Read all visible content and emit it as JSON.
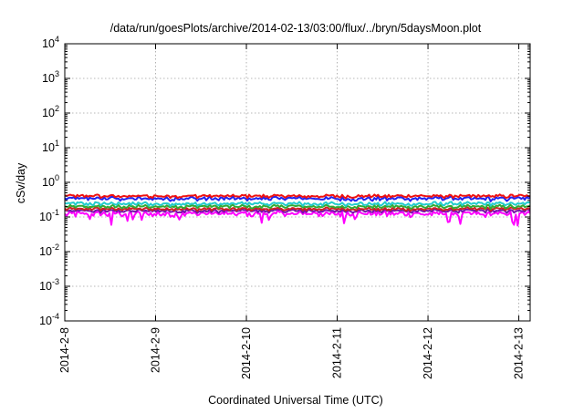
{
  "chart_data": {
    "type": "line",
    "title": "/data/run/goesPlots/archive/2014-02-13/03:00/flux/../bryn/5daysMoon.plot",
    "xlabel": "Coordinated Universal Time (UTC)",
    "ylabel": "cSv/day",
    "yscale": "log",
    "ylim": [
      0.0001,
      10000
    ],
    "xlim": [
      "2014-02-08 00:00",
      "2014-02-13 03:00"
    ],
    "grid": true,
    "y_ticks": [
      {
        "value": 0.0001,
        "base": "10",
        "exp": "-4"
      },
      {
        "value": 0.001,
        "base": "10",
        "exp": "-3"
      },
      {
        "value": 0.01,
        "base": "10",
        "exp": "-2"
      },
      {
        "value": 0.1,
        "base": "10",
        "exp": "-1"
      },
      {
        "value": 1,
        "base": "10",
        "exp": "0"
      },
      {
        "value": 10,
        "base": "10",
        "exp": "1"
      },
      {
        "value": 100,
        "base": "10",
        "exp": "2"
      },
      {
        "value": 1000,
        "base": "10",
        "exp": "3"
      },
      {
        "value": 10000,
        "base": "10",
        "exp": "4"
      }
    ],
    "x_ticks": [
      {
        "value": "2014-02-08",
        "label": "2014-2-8"
      },
      {
        "value": "2014-02-09",
        "label": "2014-2-9"
      },
      {
        "value": "2014-02-10",
        "label": "2014-2-10"
      },
      {
        "value": "2014-02-11",
        "label": "2014-2-11"
      },
      {
        "value": "2014-02-12",
        "label": "2014-2-12"
      },
      {
        "value": "2014-02-13",
        "label": "2014-2-13"
      }
    ],
    "series": [
      {
        "color": "#ee1111",
        "y_median": 0.4,
        "y_spread": 0.07,
        "dips": false
      },
      {
        "color": "#2222ee",
        "y_median": 0.34,
        "y_spread": 0.08,
        "dips": false
      },
      {
        "color": "#22cccc",
        "y_median": 0.24,
        "y_spread": 0.05,
        "dips": false
      },
      {
        "color": "#33aa33",
        "y_median": 0.2,
        "y_spread": 0.04,
        "dips": false
      },
      {
        "color": "#cc2222",
        "y_median": 0.17,
        "y_spread": 0.03,
        "dips": false
      },
      {
        "color": "#7711aa",
        "y_median": 0.15,
        "y_spread": 0.03,
        "dips": false
      },
      {
        "color": "#ff00ff",
        "y_median": 0.125,
        "y_spread": 0.04,
        "dips": true
      }
    ]
  }
}
